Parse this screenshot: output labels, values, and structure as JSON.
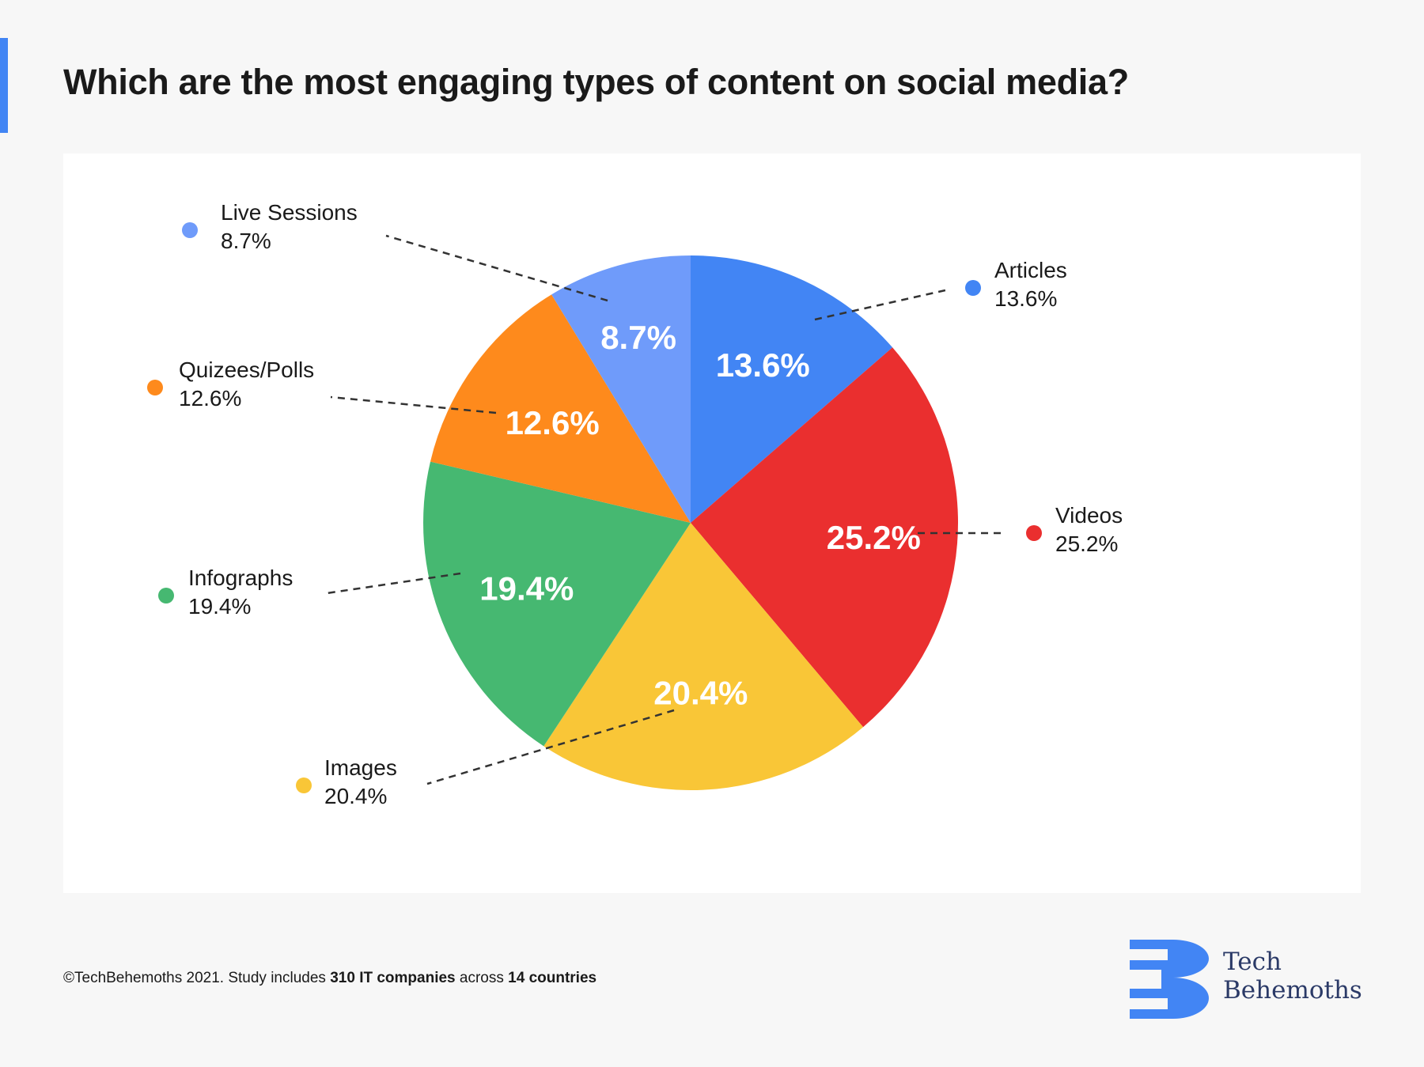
{
  "title": "Which are the most engaging types of content on social media?",
  "colors": {
    "accent": "#4285f4",
    "background": "#f7f7f7",
    "card": "#ffffff"
  },
  "chart_data": {
    "type": "pie",
    "title": "Which are the most engaging types of content on social media?",
    "start": "12 o'clock, clockwise",
    "slices": [
      {
        "label": "Articles",
        "value": 13.6,
        "display": "13.6%",
        "color": "#4285f4"
      },
      {
        "label": "Videos",
        "value": 25.2,
        "display": "25.2%",
        "color": "#ea2f2f"
      },
      {
        "label": "Images",
        "value": 20.4,
        "display": "20.4%",
        "color": "#f9c637"
      },
      {
        "label": "Infographs",
        "value": 19.4,
        "display": "19.4%",
        "color": "#46b871"
      },
      {
        "label": "Quizees/Polls",
        "value": 12.6,
        "display": "12.6%",
        "color": "#fe8a1c"
      },
      {
        "label": "Live Sessions",
        "value": 8.7,
        "display": "8.7%",
        "color": "#6f9bfa"
      }
    ]
  },
  "footer": {
    "prefix": "©TechBehemoths 2021. Study includes ",
    "companies": "310 IT companies",
    "middle": " across ",
    "countries": "14 countries"
  },
  "logo": {
    "line1": "Tech",
    "line2": "Behemoths",
    "color": "#4285f4"
  }
}
